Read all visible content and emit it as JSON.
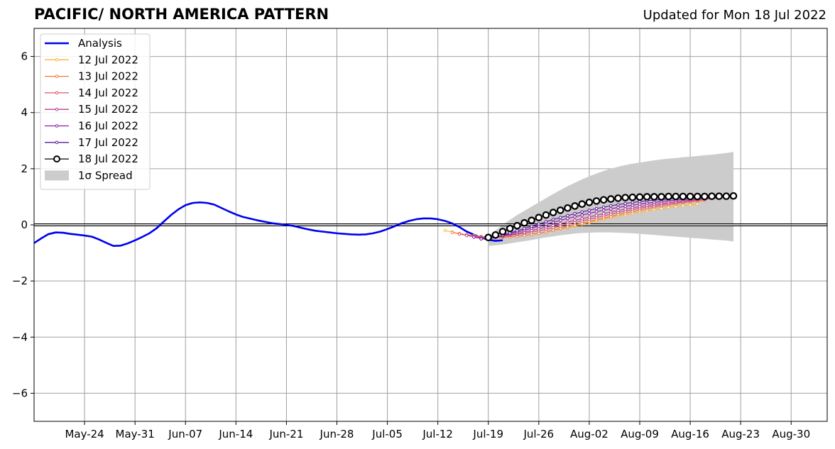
{
  "chart_data": {
    "type": "line",
    "title": "PACIFIC/ NORTH AMERICA PATTERN",
    "subtitle": "Updated for Mon 18 Jul 2022",
    "xlabel": "",
    "ylabel": "",
    "ylim": [
      -7,
      7
    ],
    "xlim": [
      "2022-05-17",
      "2022-09-04"
    ],
    "grid": true,
    "legend_position": "top-left",
    "x_ticks": [
      "May-24",
      "May-31",
      "Jun-07",
      "Jun-14",
      "Jun-21",
      "Jun-28",
      "Jul-05",
      "Jul-12",
      "Jul-19",
      "Jul-26",
      "Aug-02",
      "Aug-09",
      "Aug-16",
      "Aug-23",
      "Aug-30"
    ],
    "y_ticks": [
      "6",
      "4",
      "2",
      "0",
      "−2",
      "−4",
      "−6"
    ],
    "analysis": {
      "name": "Analysis",
      "color": "#0000ee",
      "start_date": "2022-05-17",
      "values": [
        -0.65,
        -0.48,
        -0.33,
        -0.27,
        -0.28,
        -0.32,
        -0.35,
        -0.38,
        -0.42,
        -0.52,
        -0.64,
        -0.75,
        -0.74,
        -0.66,
        -0.55,
        -0.43,
        -0.3,
        -0.12,
        0.12,
        0.35,
        0.55,
        0.7,
        0.78,
        0.8,
        0.78,
        0.72,
        0.6,
        0.48,
        0.37,
        0.28,
        0.22,
        0.16,
        0.11,
        0.06,
        0.03,
        0.0,
        -0.04,
        -0.1,
        -0.16,
        -0.21,
        -0.24,
        -0.27,
        -0.3,
        -0.32,
        -0.34,
        -0.35,
        -0.34,
        -0.3,
        -0.24,
        -0.15,
        -0.05,
        0.06,
        0.14,
        0.2,
        0.23,
        0.23,
        0.2,
        0.14,
        0.05,
        -0.08,
        -0.24,
        -0.35,
        -0.45,
        -0.53,
        -0.57,
        -0.55
      ]
    },
    "forecasts": [
      {
        "name": "12 Jul 2022",
        "color": "#f8b73a",
        "start_date": "2022-07-13",
        "values": [
          -0.2,
          -0.26,
          -0.31,
          -0.35,
          -0.38,
          -0.41,
          -0.43,
          -0.44,
          -0.44,
          -0.42,
          -0.4,
          -0.37,
          -0.34,
          -0.3,
          -0.25,
          -0.2,
          -0.15,
          -0.1,
          -0.04,
          0.02,
          0.08,
          0.14,
          0.2,
          0.26,
          0.31,
          0.36,
          0.41,
          0.46,
          0.5,
          0.54,
          0.58,
          0.62,
          0.65,
          0.68,
          0.71,
          0.74
        ]
      },
      {
        "name": "13 Jul 2022",
        "color": "#f27c40",
        "start_date": "2022-07-14",
        "values": [
          -0.27,
          -0.32,
          -0.36,
          -0.39,
          -0.42,
          -0.44,
          -0.45,
          -0.45,
          -0.43,
          -0.41,
          -0.38,
          -0.34,
          -0.3,
          -0.25,
          -0.19,
          -0.13,
          -0.07,
          -0.01,
          0.06,
          0.12,
          0.18,
          0.24,
          0.3,
          0.36,
          0.42,
          0.47,
          0.52,
          0.57,
          0.62,
          0.66,
          0.7,
          0.74,
          0.78,
          0.81,
          0.84,
          0.87
        ]
      },
      {
        "name": "14 Jul 2022",
        "color": "#de5170",
        "start_date": "2022-07-15",
        "values": [
          -0.33,
          -0.37,
          -0.41,
          -0.44,
          -0.45,
          -0.44,
          -0.41,
          -0.38,
          -0.34,
          -0.3,
          -0.26,
          -0.21,
          -0.16,
          -0.1,
          -0.04,
          0.02,
          0.08,
          0.14,
          0.2,
          0.26,
          0.32,
          0.38,
          0.44,
          0.49,
          0.54,
          0.59,
          0.63,
          0.67,
          0.71,
          0.75,
          0.78,
          0.82,
          0.85,
          0.88,
          0.91,
          0.94
        ]
      },
      {
        "name": "15 Jul 2022",
        "color": "#b83e93",
        "start_date": "2022-07-16",
        "values": [
          -0.38,
          -0.42,
          -0.45,
          -0.46,
          -0.44,
          -0.4,
          -0.36,
          -0.31,
          -0.26,
          -0.2,
          -0.14,
          -0.08,
          -0.02,
          0.04,
          0.1,
          0.16,
          0.22,
          0.28,
          0.34,
          0.4,
          0.46,
          0.51,
          0.56,
          0.61,
          0.65,
          0.69,
          0.73,
          0.76,
          0.79,
          0.82,
          0.85,
          0.88,
          0.9,
          0.92,
          0.94,
          0.96
        ]
      },
      {
        "name": "16 Jul 2022",
        "color": "#8f1fa5",
        "start_date": "2022-07-17",
        "values": [
          -0.44,
          -0.48,
          -0.48,
          -0.44,
          -0.38,
          -0.32,
          -0.26,
          -0.19,
          -0.12,
          -0.05,
          0.02,
          0.09,
          0.16,
          0.23,
          0.29,
          0.35,
          0.41,
          0.47,
          0.52,
          0.57,
          0.62,
          0.66,
          0.7,
          0.74,
          0.77,
          0.8,
          0.83,
          0.86,
          0.88,
          0.9,
          0.92,
          0.94,
          0.96,
          0.97,
          0.98,
          0.99
        ]
      },
      {
        "name": "17 Jul 2022",
        "color": "#5a1f96",
        "start_date": "2022-07-18",
        "values": [
          -0.5,
          -0.5,
          -0.44,
          -0.37,
          -0.29,
          -0.21,
          -0.13,
          -0.05,
          0.03,
          0.11,
          0.19,
          0.26,
          0.33,
          0.4,
          0.46,
          0.52,
          0.58,
          0.63,
          0.68,
          0.72,
          0.76,
          0.8,
          0.83,
          0.86,
          0.88,
          0.9,
          0.92,
          0.94,
          0.95,
          0.96,
          0.97,
          0.98,
          0.99,
          1.0,
          1.0,
          1.01
        ]
      },
      {
        "name": "18 Jul 2022",
        "color": "#000000",
        "start_date": "2022-07-19",
        "values": [
          -0.45,
          -0.36,
          -0.24,
          -0.13,
          -0.03,
          0.07,
          0.16,
          0.26,
          0.35,
          0.44,
          0.52,
          0.6,
          0.67,
          0.74,
          0.8,
          0.85,
          0.89,
          0.92,
          0.95,
          0.97,
          0.98,
          0.99,
          1.0,
          1.0,
          1.0,
          1.01,
          1.01,
          1.01,
          1.01,
          1.01,
          1.01,
          1.02,
          1.02,
          1.02,
          1.03
        ]
      }
    ],
    "spread": {
      "name": "1σ Spread",
      "color": "#cccccc",
      "start_date": "2022-07-19",
      "upper": [
        -0.4,
        -0.2,
        0.0,
        0.18,
        0.35,
        0.5,
        0.65,
        0.8,
        0.95,
        1.1,
        1.24,
        1.38,
        1.5,
        1.62,
        1.73,
        1.83,
        1.92,
        2.0,
        2.07,
        2.13,
        2.18,
        2.22,
        2.26,
        2.3,
        2.33,
        2.36,
        2.38,
        2.41,
        2.43,
        2.45,
        2.48,
        2.5,
        2.53,
        2.56,
        2.6
      ],
      "lower": [
        -0.75,
        -0.73,
        -0.7,
        -0.66,
        -0.62,
        -0.58,
        -0.54,
        -0.49,
        -0.45,
        -0.41,
        -0.37,
        -0.34,
        -0.31,
        -0.29,
        -0.28,
        -0.27,
        -0.27,
        -0.27,
        -0.28,
        -0.29,
        -0.3,
        -0.32,
        -0.34,
        -0.36,
        -0.38,
        -0.4,
        -0.42,
        -0.44,
        -0.46,
        -0.48,
        -0.5,
        -0.52,
        -0.54,
        -0.56,
        -0.59
      ]
    }
  }
}
